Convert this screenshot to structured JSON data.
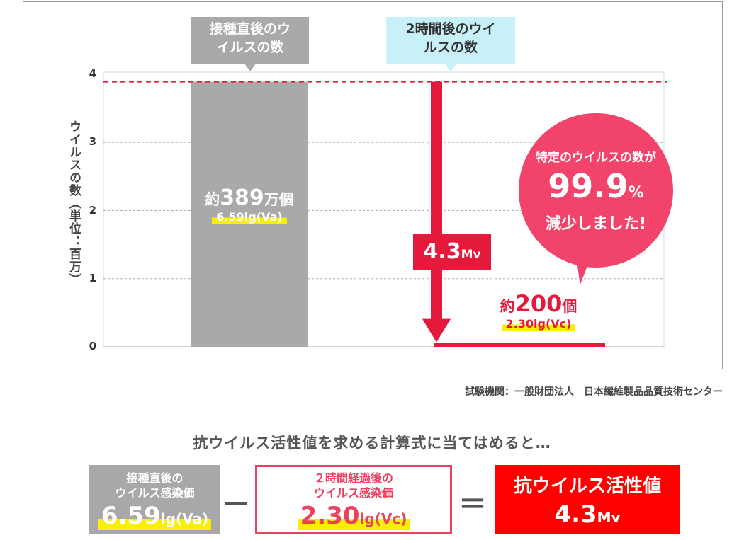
{
  "chart_data": {
    "type": "bar",
    "ylabel": "ウイルスの数（単位：百万）",
    "ylim": [
      0,
      4
    ],
    "yticks": [
      "0",
      "1",
      "2",
      "3",
      "4"
    ],
    "grid": true,
    "reference_line": 3.89,
    "categories": [
      "接種直後のウイルスの数",
      "2時間後のウイルスの数"
    ],
    "values": [
      3.89,
      0.0002
    ],
    "bar_labels": [
      {
        "count_prefix": "約",
        "count_num": "389",
        "count_suffix": "万個",
        "log_value": "6.59lg(Va)"
      },
      {
        "count_prefix": "約",
        "count_num": "200",
        "count_suffix": "個",
        "log_value": "2.30lg(Vc)"
      }
    ],
    "reduction": {
      "value": "4.3",
      "unit": "Mv"
    },
    "bubble": {
      "line1": "特定のウイルスの数が",
      "num": "99.9",
      "pct": "%",
      "line3": "減少しました!"
    }
  },
  "source": "試験機関：一般財団法人　日本繊維製品品質技術センター",
  "formula": {
    "title": "抗ウイルス活性値を求める計算式に当てはめると…",
    "a_title": [
      "接種直後の",
      "ウイルス感染価"
    ],
    "a_value": "6.59",
    "a_unit": "lg(Va)",
    "minus": "－",
    "b_title": [
      "２時間経過後の",
      "ウイルス感染価"
    ],
    "b_value": "2.30",
    "b_unit": "lg(Vc)",
    "equals": "＝",
    "result_title": "抗ウイルス活性値",
    "result_value": "4.3",
    "result_unit": "Mv"
  },
  "colors": {
    "gray_bar": "#a9a9a9",
    "red": "#e4193c",
    "pink": "#f2436a",
    "highlight": "#f9ef00",
    "light_blue": "#c8f0f8"
  }
}
